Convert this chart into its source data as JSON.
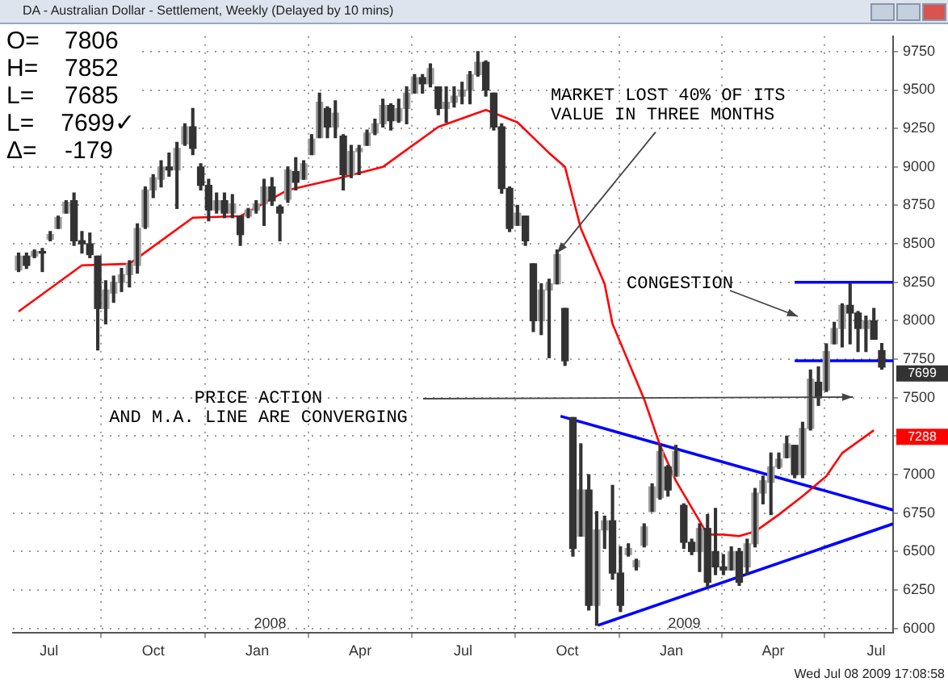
{
  "chart_data": {
    "type": "candlestick",
    "title": "DA - Australian Dollar - Settlement, Weekly (Delayed by 10 mins)",
    "color": "#333333",
    "colors": [
      "#a0a0a0",
      "#333333",
      "#a0a0a0",
      "#333333",
      "#a0a0a0",
      "#a0a0a0",
      "#a0a0a0",
      "#333333",
      "#333333",
      "#333333",
      "#333333",
      "#a0a0a0",
      "#a0a0a0",
      "#a0a0a0",
      "#a0a0a0",
      "#a0a0a0",
      "#a0a0a0",
      "#a0a0a0",
      "#a0a0a0",
      "#333333",
      "#a0a0a0",
      "#a0a0a0",
      "#333333",
      "#333333",
      "#333333",
      "#a0a0a0",
      "#333333",
      "#a0a0a0",
      "#333333",
      "#a0a0a0",
      "#a0a0a0",
      "#a0a0a0",
      "#333333",
      "#333333",
      "#a0a0a0",
      "#333333",
      "#a0a0a0",
      "#a0a0a0",
      "#a0a0a0",
      "#333333",
      "#a0a0a0",
      "#333333",
      "#a0a0a0",
      "#a0a0a0",
      "#a0a0a0",
      "#a0a0a0",
      "#a0a0a0",
      "#333333",
      "#a0a0a0",
      "#a0a0a0",
      "#a0a0a0",
      "#333333",
      "#a0a0a0",
      "#333333",
      "#a0a0a0",
      "#a0a0a0",
      "#a0a0a0",
      "#a0a0a0",
      "#a0a0a0",
      "#333333",
      "#333333",
      "#333333",
      "#333333",
      "#a0a0a0",
      "#333333",
      "#333333",
      "#a0a0a0",
      "#a0a0a0",
      "#a0a0a0",
      "#333333",
      "#333333",
      "#a0a0a0",
      "#333333",
      "#a0a0a0",
      "#a0a0a0",
      "#333333",
      "#333333",
      "#a0a0a0",
      "#a0a0a0",
      "#a0a0a0",
      "#a0a0a0",
      "#a0a0a0",
      "#333333",
      "#a0a0a0",
      "#333333",
      "#333333",
      "#a0a0a0",
      "#333333",
      "#333333",
      "#333333",
      "#a0a0a0",
      "#333333",
      "#a0a0a0",
      "#a0a0a0",
      "#a0a0a0",
      "#a0a0a0",
      "#a0a0a0",
      "#a0a0a0",
      "#333333",
      "#a0a0a0",
      "#a0a0a0",
      "#333333",
      "#a0a0a0",
      "#a0a0a0",
      "#a0a0a0",
      "#333333",
      "#333333",
      "#a0a0a0",
      "#333333",
      "#333333"
    ],
    "x": [
      "2007-06-04",
      "2007-06-11",
      "2007-06-18",
      "2007-06-25",
      "2007-07-02",
      "2007-07-09",
      "2007-07-16",
      "2007-07-23",
      "2007-07-30",
      "2007-08-06",
      "2007-08-13",
      "2007-08-20",
      "2007-08-27",
      "2007-09-03",
      "2007-09-10",
      "2007-09-17",
      "2007-09-24",
      "2007-10-01",
      "2007-10-08",
      "2007-10-15",
      "2007-10-22",
      "2007-10-29",
      "2007-11-05",
      "2007-11-12",
      "2007-11-19",
      "2007-11-26",
      "2007-12-03",
      "2007-12-10",
      "2007-12-17",
      "2007-12-24",
      "2007-12-31",
      "2008-01-07",
      "2008-01-14",
      "2008-01-21",
      "2008-01-28",
      "2008-02-04",
      "2008-02-11",
      "2008-02-18",
      "2008-02-25",
      "2008-03-03",
      "2008-03-10",
      "2008-03-17",
      "2008-03-24",
      "2008-03-31",
      "2008-04-07",
      "2008-04-14",
      "2008-04-21",
      "2008-04-28",
      "2008-05-05",
      "2008-05-12",
      "2008-05-19",
      "2008-05-26",
      "2008-06-02",
      "2008-06-09",
      "2008-06-16",
      "2008-06-23",
      "2008-06-30",
      "2008-07-07",
      "2008-07-14",
      "2008-07-21",
      "2008-07-28",
      "2008-08-04",
      "2008-08-11",
      "2008-08-18",
      "2008-08-25",
      "2008-09-01",
      "2008-09-08",
      "2008-09-15",
      "2008-09-22",
      "2008-09-29",
      "2008-10-06",
      "2008-10-13",
      "2008-10-20",
      "2008-10-27",
      "2008-11-03",
      "2008-11-10",
      "2008-11-17",
      "2008-11-24",
      "2008-12-01",
      "2008-12-08",
      "2008-12-15",
      "2008-12-22",
      "2008-12-29",
      "2009-01-05",
      "2009-01-12",
      "2009-01-19",
      "2009-01-26",
      "2009-02-02",
      "2009-02-09",
      "2009-02-16",
      "2009-02-23",
      "2009-03-02",
      "2009-03-09",
      "2009-03-16",
      "2009-03-23",
      "2009-03-30",
      "2009-04-06",
      "2009-04-13",
      "2009-04-20",
      "2009-04-27",
      "2009-05-04",
      "2009-05-11",
      "2009-05-18",
      "2009-05-25",
      "2009-06-01",
      "2009-06-08",
      "2009-06-15",
      "2009-06-22",
      "2009-06-29",
      "2009-07-06"
    ],
    "ohlc": [
      [
        8330,
        8440,
        8320,
        8420
      ],
      [
        8420,
        8440,
        8340,
        8360
      ],
      [
        8420,
        8460,
        8410,
        8450
      ],
      [
        8450,
        8470,
        8320,
        8440
      ],
      [
        8530,
        8580,
        8520,
        8560
      ],
      [
        8600,
        8680,
        8600,
        8670
      ],
      [
        8700,
        8780,
        8700,
        8770
      ],
      [
        8780,
        8830,
        8490,
        8520
      ],
      [
        8520,
        8580,
        8440,
        8500
      ],
      [
        8500,
        8570,
        8410,
        8430
      ],
      [
        8420,
        8420,
        7810,
        8080
      ],
      [
        8080,
        8260,
        7980,
        8200
      ],
      [
        8180,
        8290,
        8120,
        8250
      ],
      [
        8250,
        8340,
        8190,
        8300
      ],
      [
        8300,
        8390,
        8220,
        8370
      ],
      [
        8360,
        8630,
        8310,
        8600
      ],
      [
        8610,
        8870,
        8600,
        8850
      ],
      [
        8850,
        8950,
        8800,
        8930
      ],
      [
        8920,
        9040,
        8870,
        9000
      ],
      [
        9000,
        9090,
        8940,
        8980
      ],
      [
        8980,
        9160,
        8730,
        9120
      ],
      [
        9150,
        9280,
        9140,
        9260
      ],
      [
        9260,
        9380,
        9080,
        9120
      ],
      [
        9000,
        9020,
        8850,
        8880
      ],
      [
        8880,
        8920,
        8650,
        8720
      ],
      [
        8720,
        8830,
        8700,
        8780
      ],
      [
        8780,
        8830,
        8670,
        8700
      ],
      [
        8700,
        8820,
        8670,
        8760
      ],
      [
        8680,
        8680,
        8490,
        8560
      ],
      [
        8680,
        8730,
        8670,
        8720
      ],
      [
        8720,
        8780,
        8700,
        8760
      ],
      [
        8760,
        8920,
        8620,
        8870
      ],
      [
        8870,
        8930,
        8750,
        8780
      ],
      [
        8740,
        8750,
        8520,
        8700
      ],
      [
        8790,
        9000,
        8770,
        8980
      ],
      [
        8970,
        9060,
        8850,
        8900
      ],
      [
        8920,
        9040,
        8920,
        9020
      ],
      [
        9080,
        9210,
        9080,
        9180
      ],
      [
        9190,
        9480,
        9190,
        9420
      ],
      [
        9380,
        9390,
        9190,
        9260
      ],
      [
        9260,
        9430,
        9190,
        9350
      ],
      [
        9200,
        9210,
        8850,
        8950
      ],
      [
        8950,
        9140,
        8930,
        9100
      ],
      [
        9100,
        9140,
        8950,
        9120
      ],
      [
        9140,
        9240,
        9140,
        9220
      ],
      [
        9220,
        9310,
        9210,
        9280
      ],
      [
        9280,
        9440,
        9260,
        9400
      ],
      [
        9400,
        9410,
        9240,
        9300
      ],
      [
        9300,
        9440,
        9290,
        9380
      ],
      [
        9380,
        9520,
        9280,
        9480
      ],
      [
        9480,
        9600,
        9480,
        9580
      ],
      [
        9580,
        9600,
        9480,
        9540
      ],
      [
        9540,
        9670,
        9520,
        9640
      ],
      [
        9520,
        9520,
        9340,
        9380
      ],
      [
        9380,
        9520,
        9290,
        9420
      ],
      [
        9420,
        9520,
        9390,
        9460
      ],
      [
        9460,
        9550,
        9410,
        9500
      ],
      [
        9500,
        9620,
        9410,
        9600
      ],
      [
        9600,
        9750,
        9590,
        9680
      ],
      [
        9680,
        9690,
        9460,
        9500
      ],
      [
        9480,
        9480,
        9240,
        9260
      ],
      [
        9260,
        9280,
        8830,
        8860
      ],
      [
        8860,
        8870,
        8580,
        8600
      ],
      [
        8620,
        8750,
        8620,
        8700
      ],
      [
        8680,
        8680,
        8490,
        8520
      ],
      [
        8370,
        8370,
        7930,
        8000
      ],
      [
        8000,
        8240,
        7910,
        8200
      ],
      [
        8200,
        8270,
        7760,
        8240
      ],
      [
        8240,
        8460,
        8240,
        8430
      ],
      [
        8080,
        8080,
        7710,
        7740
      ],
      [
        7370,
        7370,
        6470,
        6520
      ],
      [
        6600,
        7200,
        6600,
        6900
      ],
      [
        6900,
        7000,
        6120,
        6150
      ],
      [
        6150,
        6760,
        6020,
        6640
      ],
      [
        6640,
        6730,
        6520,
        6700
      ],
      [
        6700,
        6930,
        6320,
        6360
      ],
      [
        6360,
        6530,
        6110,
        6150
      ],
      [
        6480,
        6550,
        6470,
        6520
      ],
      [
        6400,
        6450,
        6380,
        6440
      ],
      [
        6540,
        6680,
        6530,
        6660
      ],
      [
        6760,
        6940,
        6760,
        6920
      ],
      [
        6850,
        7190,
        6840,
        7150
      ],
      [
        7050,
        7060,
        6860,
        6900
      ],
      [
        6990,
        7190,
        6990,
        7150
      ],
      [
        6800,
        6810,
        6520,
        6560
      ],
      [
        6560,
        6580,
        6480,
        6500
      ],
      [
        6500,
        6680,
        6370,
        6650
      ],
      [
        6650,
        6740,
        6270,
        6300
      ],
      [
        6500,
        6780,
        6350,
        6400
      ],
      [
        6400,
        6480,
        6350,
        6380
      ],
      [
        6380,
        6530,
        6380,
        6500
      ],
      [
        6500,
        6520,
        6280,
        6300
      ],
      [
        6400,
        6580,
        6350,
        6550
      ],
      [
        6550,
        6910,
        6530,
        6880
      ],
      [
        6880,
        6990,
        6810,
        6960
      ],
      [
        6950,
        7140,
        6740,
        7050
      ],
      [
        7050,
        7140,
        7040,
        7100
      ],
      [
        7110,
        7250,
        7110,
        7200
      ],
      [
        7190,
        7190,
        6980,
        7000
      ],
      [
        7000,
        7340,
        6980,
        7300
      ],
      [
        7300,
        7680,
        7290,
        7620
      ],
      [
        7600,
        7700,
        7450,
        7500
      ],
      [
        7550,
        7850,
        7540,
        7800
      ],
      [
        7850,
        7990,
        7850,
        7950
      ],
      [
        7950,
        8110,
        7830,
        8100
      ],
      [
        8100,
        8240,
        7850,
        8050
      ],
      [
        8050,
        8060,
        7800,
        7950
      ],
      [
        7950,
        8030,
        7800,
        8000
      ],
      [
        8000,
        8080,
        7880,
        7880
      ],
      [
        7806,
        7852,
        7685,
        7699
      ]
    ],
    "series": [
      {
        "type": "line",
        "color": "#ff0000",
        "x": [
          "2007-06-04",
          "2007-07-30",
          "2007-09-10",
          "2007-11-05",
          "2007-12-17",
          "2008-01-28",
          "2008-03-10",
          "2008-04-21",
          "2008-06-09",
          "2008-07-21",
          "2008-08-18",
          "2008-09-15",
          "2008-09-29",
          "2008-10-13",
          "2008-11-03",
          "2008-11-10",
          "2008-12-08",
          "2008-12-22",
          "2009-01-05",
          "2009-02-02",
          "2009-02-16",
          "2009-03-02",
          "2009-03-16",
          "2009-04-06",
          "2009-04-27",
          "2009-05-18",
          "2009-06-01",
          "2009-06-29"
        ],
        "values": [
          8060,
          8360,
          8370,
          8670,
          8680,
          8850,
          8920,
          9000,
          9260,
          9370,
          9290,
          9090,
          9000,
          8600,
          8240,
          7980,
          7490,
          7190,
          6960,
          6610,
          6610,
          6600,
          6630,
          6740,
          6860,
          6990,
          7140,
          7288
        ]
      },
      {
        "type": "line",
        "color": "#0000ff",
        "x": [
          "2008-09-25",
          "2009-07-16"
        ],
        "values": [
          7380,
          6770
        ]
      },
      {
        "type": "line",
        "color": "#0000ff",
        "x": [
          "2008-10-28",
          "2009-07-16"
        ],
        "values": [
          6020,
          6680
        ]
      },
      {
        "type": "line",
        "color": "#0000ff",
        "x": [
          "2009-04-20",
          "2009-07-16"
        ],
        "values": [
          8250,
          8250
        ]
      },
      {
        "type": "line",
        "color": "#0000ff",
        "x": [
          "2009-04-20",
          "2009-07-16"
        ],
        "values": [
          7740,
          7740
        ]
      }
    ],
    "xlim": [
      "2007-05-30",
      "2009-07-16"
    ],
    "xticks": [
      {
        "value": "2007-07-01",
        "label": "Jul"
      },
      {
        "value": "2007-10-01",
        "label": "Oct"
      },
      {
        "value": "2008-01-01",
        "label": "Jan"
      },
      {
        "value": "2008-04-01",
        "label": "Apr"
      },
      {
        "value": "2008-07-01",
        "label": "Jul"
      },
      {
        "value": "2008-10-01",
        "label": "Oct"
      },
      {
        "value": "2009-01-01",
        "label": "Jan"
      },
      {
        "value": "2009-04-01",
        "label": "Apr"
      },
      {
        "value": "2009-07-01",
        "label": "Jul"
      }
    ],
    "ylim": [
      5970,
      9850
    ],
    "yticks": [
      6000,
      6250,
      6500,
      6750,
      7000,
      {
        "value": 7250,
        "label": null
      },
      7500,
      7750,
      8000,
      8250,
      8500,
      8750,
      9000,
      9250,
      9500,
      9750
    ],
    "grid": true,
    "marker": "none",
    "annotations": [
      "O= 7806",
      "H= 7852",
      "L= 7685",
      "L= 7699✓",
      "Δ= -179",
      {
        "text": "MARKET LOST 40% OF ITS\nVALUE IN THREE MONTHS",
        "x": "2008-09-22",
        "y": 8440
      },
      "CONGESTION",
      "PRICE ACTION\nAND M.A. LINE ARE CONVERGING",
      "7699",
      "7288",
      "2008",
      "2009",
      "Wed Jul 08 2009 17:08:58"
    ]
  }
}
